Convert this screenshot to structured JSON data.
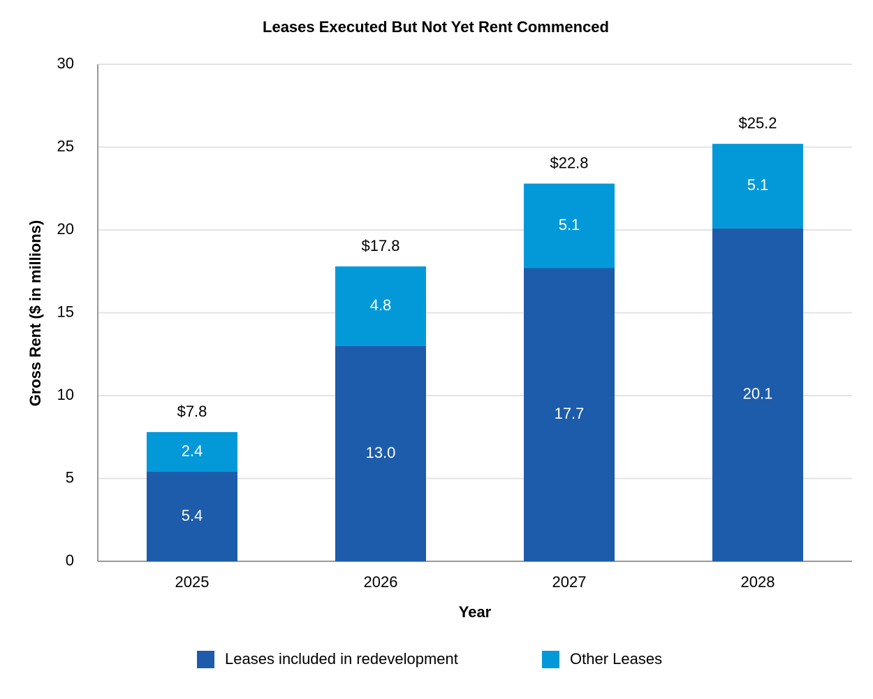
{
  "chart_data": {
    "type": "stacked_bar",
    "title": "Leases Executed But Not Yet Rent Commenced",
    "x_label": "Year",
    "y_label": "Gross Rent ($ in millions)",
    "categories": [
      "2025",
      "2026",
      "2027",
      "2028"
    ],
    "series": [
      {
        "name": "Leases included in redevelopment",
        "color": "#1c5caa",
        "values": [
          5.4,
          13.0,
          17.7,
          20.1
        ],
        "value_labels": [
          "5.4",
          "13.0",
          "17.7",
          "20.1"
        ]
      },
      {
        "name": "Other Leases",
        "color": "#0399d8",
        "values": [
          2.4,
          4.8,
          5.1,
          5.1
        ]
      }
    ],
    "totals": [
      7.8,
      17.8,
      22.8,
      25.2
    ],
    "total_labels": [
      "$7.8",
      "$17.8",
      "$22.8",
      "$25.2"
    ],
    "ylim": [
      0,
      30
    ],
    "yticks": [
      0,
      5,
      10,
      15,
      20,
      25,
      30
    ],
    "grid": true,
    "legend": "bottom"
  }
}
